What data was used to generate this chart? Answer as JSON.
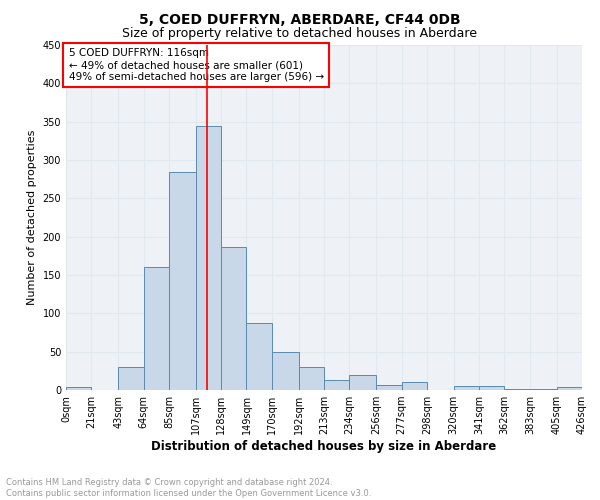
{
  "title1": "5, COED DUFFRYN, ABERDARE, CF44 0DB",
  "title2": "Size of property relative to detached houses in Aberdare",
  "xlabel": "Distribution of detached houses by size in Aberdare",
  "ylabel": "Number of detached properties",
  "bin_edges": [
    0,
    21,
    43,
    64,
    85,
    107,
    128,
    149,
    170,
    192,
    213,
    234,
    256,
    277,
    298,
    320,
    341,
    362,
    383,
    405,
    426
  ],
  "bar_heights": [
    4,
    0,
    30,
    161,
    284,
    345,
    186,
    88,
    49,
    30,
    13,
    19,
    7,
    10,
    0,
    5,
    5,
    1,
    1,
    4
  ],
  "bar_color": "#c8d8e8",
  "bar_edge_color": "#5a8ab0",
  "vline_x": 116,
  "vline_color": "red",
  "annotation_text": "5 COED DUFFRYN: 116sqm\n← 49% of detached houses are smaller (601)\n49% of semi-detached houses are larger (596) →",
  "annotation_box_color": "white",
  "annotation_box_edge_color": "red",
  "tick_labels": [
    "0sqm",
    "21sqm",
    "43sqm",
    "64sqm",
    "85sqm",
    "107sqm",
    "128sqm",
    "149sqm",
    "170sqm",
    "192sqm",
    "213sqm",
    "234sqm",
    "256sqm",
    "277sqm",
    "298sqm",
    "320sqm",
    "341sqm",
    "362sqm",
    "383sqm",
    "405sqm",
    "426sqm"
  ],
  "ylim": [
    0,
    450
  ],
  "yticks": [
    0,
    50,
    100,
    150,
    200,
    250,
    300,
    350,
    400,
    450
  ],
  "grid_color": "#e0e8f0",
  "bg_color": "#eef2f7",
  "footer_text": "Contains HM Land Registry data © Crown copyright and database right 2024.\nContains public sector information licensed under the Open Government Licence v3.0.",
  "footer_color": "#999999",
  "title1_fontsize": 10,
  "title2_fontsize": 9,
  "xlabel_fontsize": 8.5,
  "ylabel_fontsize": 8,
  "tick_fontsize": 7,
  "annot_fontsize": 7.5,
  "footer_fontsize": 6
}
